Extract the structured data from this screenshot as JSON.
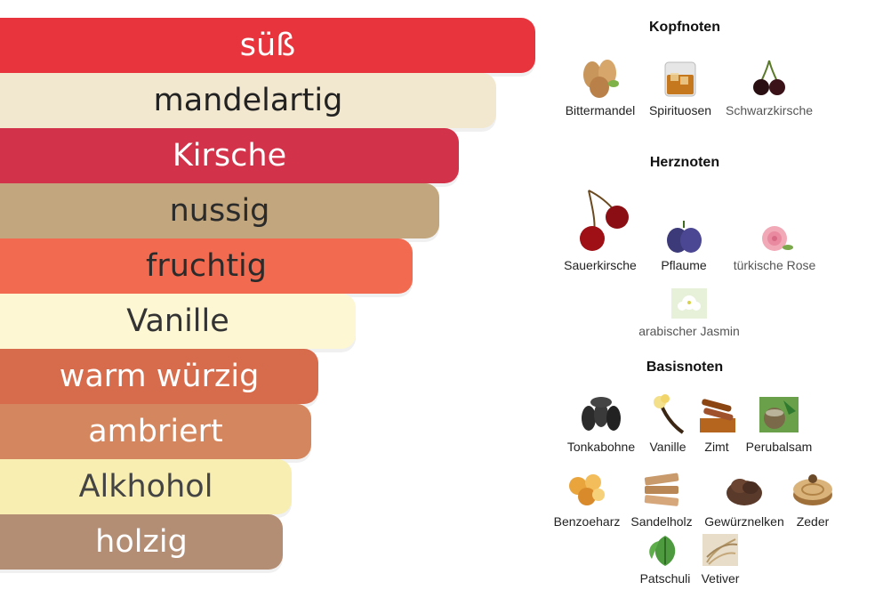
{
  "accords": [
    {
      "label": "süß",
      "color": "#e8343c",
      "text": "#ffffff",
      "width": 602
    },
    {
      "label": "mandelartig",
      "color": "#f2e7cf",
      "text": "#222222",
      "width": 558
    },
    {
      "label": "Kirsche",
      "color": "#d3334a",
      "text": "#ffffff",
      "width": 516
    },
    {
      "label": "nussig",
      "color": "#c2a67d",
      "text": "#2b2b2b",
      "width": 494
    },
    {
      "label": "fruchtig",
      "color": "#f26a4f",
      "text": "#2b2b2b",
      "width": 464
    },
    {
      "label": "Vanille",
      "color": "#fdf7d3",
      "text": "#333333",
      "width": 400
    },
    {
      "label": "warm würzig",
      "color": "#d76c4d",
      "text": "#ffffff",
      "width": 358
    },
    {
      "label": "ambriert",
      "color": "#d4875e",
      "text": "#ffffff",
      "width": 350
    },
    {
      "label": "Alkhohol",
      "color": "#f8eeb1",
      "text": "#444444",
      "width": 328
    },
    {
      "label": "holzig",
      "color": "#b38d74",
      "text": "#ffffff",
      "width": 318
    }
  ],
  "sections": {
    "top": {
      "title": "Kopfnoten",
      "notes": [
        "Bittermandel",
        "Spirituosen",
        "Schwarzkirsche"
      ]
    },
    "heart": {
      "title": "Herznoten",
      "notes": [
        "Sauerkirsche",
        "Pflaume",
        "türkische Rose",
        "arabischer Jasmin"
      ]
    },
    "base": {
      "title": "Basisnoten",
      "notes": [
        "Tonkabohne",
        "Vanille",
        "Zimt",
        "Perubalsam",
        "Benzoeharz",
        "Sandelholz",
        "Gewürznelken",
        "Zeder",
        "Patschuli",
        "Vetiver"
      ]
    }
  }
}
